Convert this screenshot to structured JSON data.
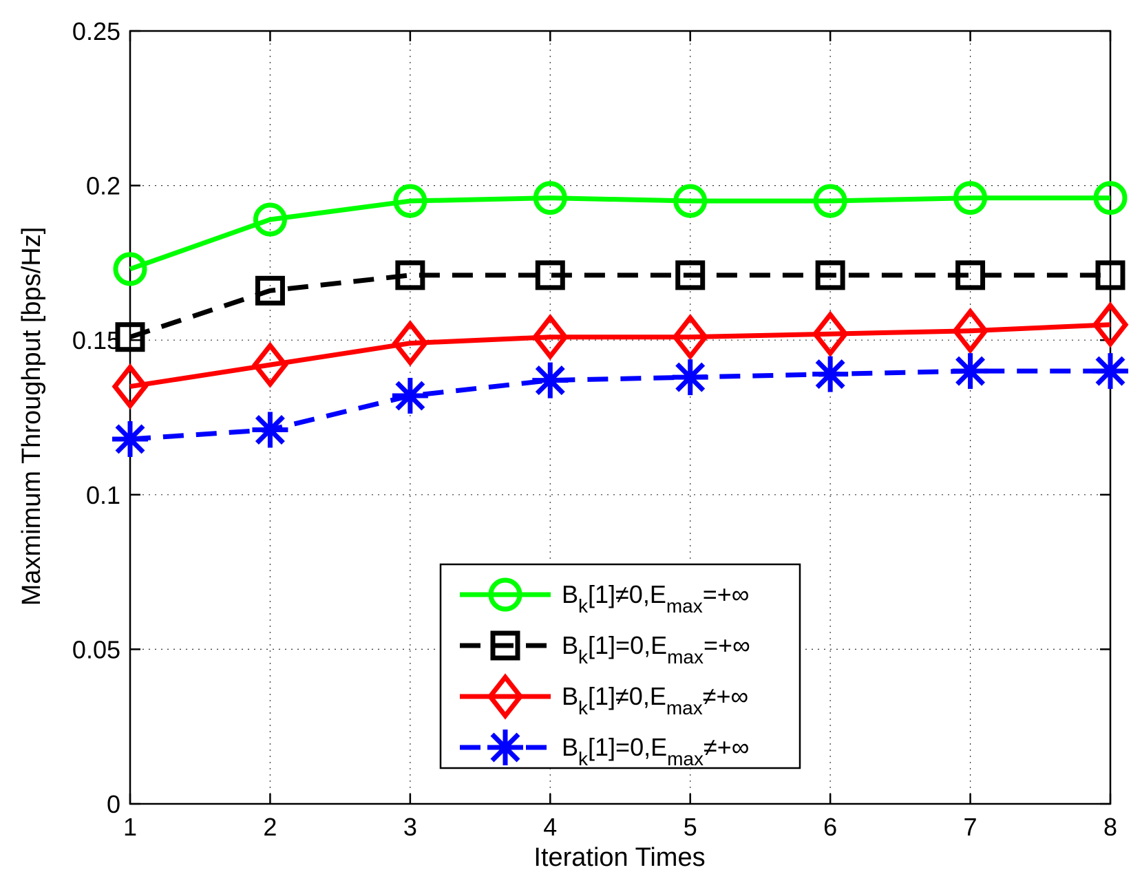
{
  "chart_data": {
    "type": "line",
    "title": "",
    "xlabel": "Iteration Times",
    "ylabel": "Maxmimum Throughput [bps/Hz]",
    "xlim": [
      1,
      8
    ],
    "ylim": [
      0,
      0.25
    ],
    "x": [
      1,
      2,
      3,
      4,
      5,
      6,
      7,
      8
    ],
    "x_ticks": [
      1,
      2,
      3,
      4,
      5,
      6,
      7,
      8
    ],
    "x_tick_labels": [
      "1",
      "2",
      "3",
      "4",
      "5",
      "6",
      "7",
      "8"
    ],
    "y_ticks": [
      0,
      0.05,
      0.1,
      0.15,
      0.2,
      0.25
    ],
    "y_tick_labels": [
      "0",
      "0.05",
      "0.1",
      "0.15",
      "0.2",
      "0.25"
    ],
    "grid": true,
    "legend_position": "bottom-center",
    "series": [
      {
        "name": "Bk[1]≠0,Emax=+∞",
        "legend": {
          "b": "B",
          "k": "k",
          "mid": "[1]≠0,E",
          "max": "max",
          "tail": "=+∞"
        },
        "values": [
          0.173,
          0.189,
          0.195,
          0.196,
          0.195,
          0.195,
          0.196,
          0.196
        ],
        "color": "#00ff00",
        "linestyle": "solid",
        "marker": "circle"
      },
      {
        "name": "Bk[1]=0,Emax=+∞",
        "legend": {
          "b": "B",
          "k": "k",
          "mid": "[1]=0,E",
          "max": "max",
          "tail": "=+∞"
        },
        "values": [
          0.151,
          0.166,
          0.171,
          0.171,
          0.171,
          0.171,
          0.171,
          0.171
        ],
        "color": "#000000",
        "linestyle": "dashed",
        "marker": "square"
      },
      {
        "name": "Bk[1]≠0,Emax≠+∞",
        "legend": {
          "b": "B",
          "k": "k",
          "mid": "[1]≠0,E",
          "max": "max",
          "tail": "≠+∞"
        },
        "values": [
          0.135,
          0.142,
          0.149,
          0.151,
          0.151,
          0.152,
          0.153,
          0.155
        ],
        "color": "#ff0000",
        "linestyle": "solid",
        "marker": "diamond"
      },
      {
        "name": "Bk[1]=0,Emax≠+∞",
        "legend": {
          "b": "B",
          "k": "k",
          "mid": "[1]=0,E",
          "max": "max",
          "tail": "≠+∞"
        },
        "values": [
          0.118,
          0.121,
          0.132,
          0.137,
          0.138,
          0.139,
          0.14,
          0.14
        ],
        "color": "#0000ff",
        "linestyle": "dashed",
        "marker": "asterisk"
      }
    ]
  }
}
